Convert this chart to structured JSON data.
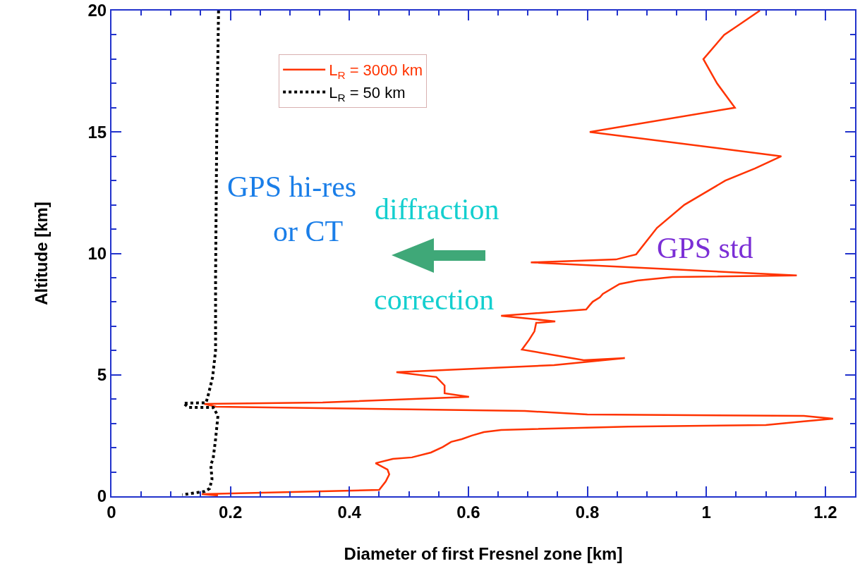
{
  "chart_data": {
    "type": "line",
    "xlabel": "Diameter of first Fresnel zone [km]",
    "ylabel": "Altitude [km]",
    "series": [
      {
        "name": "L$_{R}$ = 3000 km",
        "color": "#ff3300",
        "line_style": "solid",
        "x": [
          1.09,
          1.054,
          1.03,
          0.995,
          1.018,
          1.048,
          0.804,
          1.126,
          1.082,
          1.032,
          0.963,
          0.917,
          0.882,
          0.848,
          0.705,
          1.152,
          0.943,
          0.884,
          0.854,
          0.826,
          0.821,
          0.809,
          0.804,
          0.798,
          0.655,
          0.746,
          0.714,
          0.711,
          0.702,
          0.69,
          0.794,
          0.863,
          0.744,
          0.479,
          0.546,
          0.56,
          0.56,
          0.601,
          0.355,
          0.156,
          0.176,
          0.695,
          0.8,
          1.164,
          1.213,
          1.161,
          1.1,
          0.869,
          0.655,
          0.626,
          0.606,
          0.589,
          0.571,
          0.557,
          0.537,
          0.505,
          0.473,
          0.444,
          0.464,
          0.467,
          0.461,
          0.45,
          0.152,
          0.179
        ],
        "values": [
          20,
          19.4,
          19,
          18,
          17,
          16,
          15,
          14,
          13.5,
          13,
          12,
          11.05,
          9.96,
          9.75,
          9.63,
          9.09,
          9.03,
          8.88,
          8.74,
          8.33,
          8.19,
          8.01,
          7.87,
          7.69,
          7.43,
          7.2,
          7.14,
          6.79,
          6.44,
          6.04,
          5.6,
          5.69,
          5.4,
          5.11,
          4.91,
          4.56,
          4.24,
          4.09,
          3.86,
          3.8,
          3.69,
          3.51,
          3.37,
          3.31,
          3.19,
          3.08,
          2.93,
          2.87,
          2.73,
          2.64,
          2.5,
          2.35,
          2.24,
          2.03,
          1.8,
          1.6,
          1.54,
          1.36,
          1.1,
          0.9,
          0.61,
          0.26,
          0.09,
          0.03
        ]
      },
      {
        "name": "L$_{R}$ = 50 km",
        "color": "#000000",
        "line_style": "dotted",
        "x": [
          0.18,
          0.177,
          0.175,
          0.175,
          0.17,
          0.163,
          0.159,
          0.121,
          0.13,
          0.171,
          0.179,
          0.175,
          0.171,
          0.167,
          0.169,
          0.165,
          0.157,
          0.119
        ],
        "values": [
          20,
          15,
          9,
          6,
          4.9,
          4.2,
          3.85,
          3.83,
          3.66,
          3.66,
          3.31,
          2.35,
          1.57,
          1.28,
          0.7,
          0.32,
          0.2,
          0.06
        ]
      }
    ],
    "xlim": [
      0,
      1.25
    ],
    "xticks": [
      0,
      {
        "value": 0.05,
        "label": null
      },
      {
        "value": 0.1,
        "label": null
      },
      {
        "value": 0.15,
        "label": null
      },
      0.2,
      {
        "value": 0.25,
        "label": null
      },
      {
        "value": 0.3,
        "label": null
      },
      {
        "value": 0.35,
        "label": null
      },
      0.4,
      {
        "value": 0.45,
        "label": null
      },
      {
        "value": 0.5,
        "label": null
      },
      {
        "value": 0.55,
        "label": null
      },
      0.6,
      {
        "value": 0.65,
        "label": null
      },
      {
        "value": 0.7,
        "label": null
      },
      {
        "value": 0.75,
        "label": null
      },
      0.8,
      {
        "value": 0.85,
        "label": null
      },
      {
        "value": 0.9,
        "label": null
      },
      {
        "value": 0.95,
        "label": null
      },
      1,
      {
        "value": 1.05,
        "label": null
      },
      {
        "value": 1.1,
        "label": null
      },
      {
        "value": 1.15,
        "label": null
      },
      1.2
    ],
    "ylim": [
      0,
      20
    ],
    "yticks": [
      0,
      {
        "value": 1,
        "label": null
      },
      {
        "value": 2,
        "label": null
      },
      {
        "value": 3,
        "label": null
      },
      {
        "value": 4,
        "label": null
      },
      5,
      {
        "value": 6,
        "label": null
      },
      {
        "value": 7,
        "label": null
      },
      {
        "value": 8,
        "label": null
      },
      {
        "value": 9,
        "label": null
      },
      10,
      {
        "value": 11,
        "label": null
      },
      {
        "value": 12,
        "label": null
      },
      {
        "value": 13,
        "label": null
      },
      {
        "value": 14,
        "label": null
      },
      15,
      {
        "value": 16,
        "label": null
      },
      {
        "value": 17,
        "label": null
      },
      {
        "value": 18,
        "label": null
      },
      {
        "value": 19,
        "label": null
      },
      20
    ],
    "annotations": [
      "GPS hi-res",
      "or CT",
      "diffraction",
      "correction",
      "GPS std"
    ],
    "grid": false,
    "legend": "top left",
    "marker": "none"
  }
}
